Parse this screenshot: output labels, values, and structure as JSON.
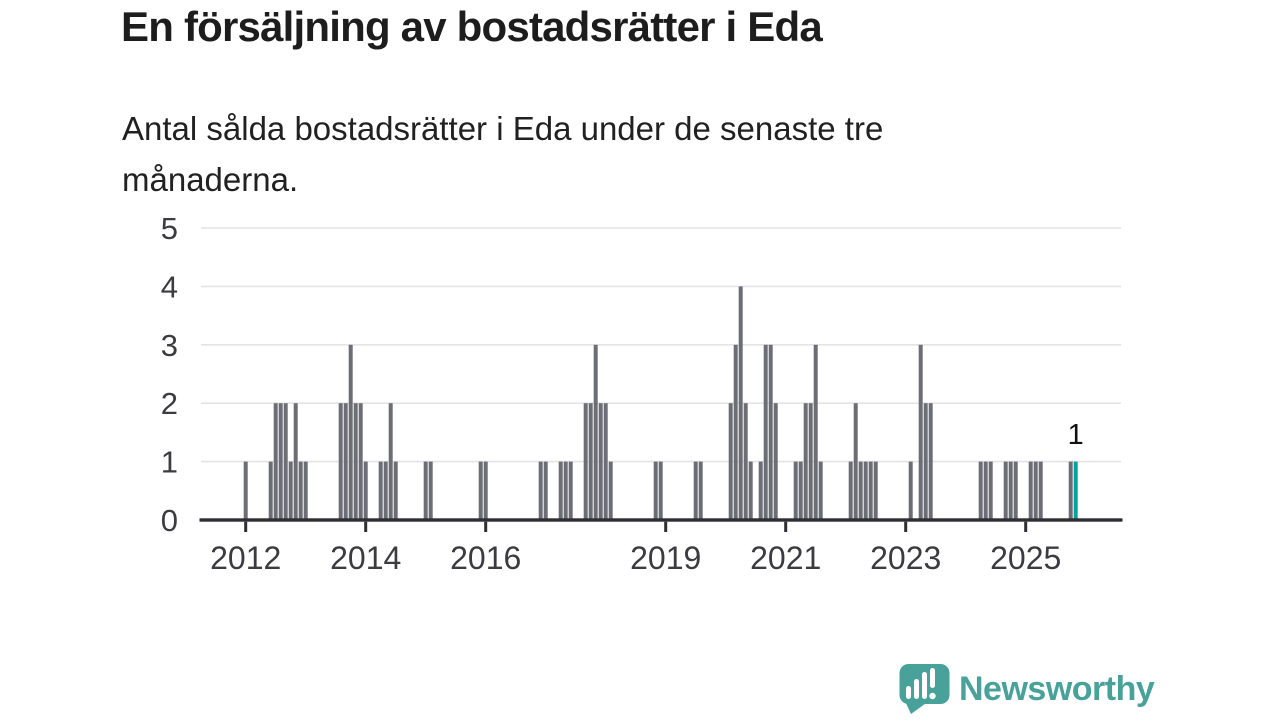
{
  "header": {
    "title": "En försäljning av bostadsrätter i Eda",
    "subtitle_line1": "Antal sålda bostadsrätter i Eda under de senaste tre",
    "subtitle_line2": "månaderna."
  },
  "chart_data": {
    "type": "bar",
    "title": "En försäljning av bostadsrätter i Eda",
    "subtitle": "Antal sålda bostadsrätter i Eda under de senaste tre månaderna.",
    "ylabel": "",
    "xlabel": "",
    "ylim": [
      0,
      5
    ],
    "grid": true,
    "legend_position": "none",
    "y_ticks": [
      0,
      1,
      2,
      3,
      4,
      5
    ],
    "x_ticks": [
      {
        "label": "2012",
        "month_index": 0
      },
      {
        "label": "2014",
        "month_index": 24
      },
      {
        "label": "2016",
        "month_index": 48
      },
      {
        "label": "2019",
        "month_index": 84
      },
      {
        "label": "2021",
        "month_index": 108
      },
      {
        "label": "2023",
        "month_index": 132
      },
      {
        "label": "2025",
        "month_index": 156
      }
    ],
    "highlight_label": "1",
    "colors": {
      "bar": "#6d6d75",
      "highlight": "#00a49c",
      "grid": "#e4e4e6",
      "axis": "#2e2e33",
      "axis_text": "#3c3c40",
      "annotation_text": "#111111"
    },
    "points": [
      [
        "2012-01",
        1
      ],
      [
        "2012-06",
        1
      ],
      [
        "2012-07",
        2
      ],
      [
        "2012-08",
        2
      ],
      [
        "2012-09",
        2
      ],
      [
        "2012-10",
        1
      ],
      [
        "2012-11",
        2
      ],
      [
        "2012-12",
        1
      ],
      [
        "2013-01",
        1
      ],
      [
        "2013-08",
        2
      ],
      [
        "2013-09",
        2
      ],
      [
        "2013-10",
        3
      ],
      [
        "2013-11",
        2
      ],
      [
        "2013-12",
        2
      ],
      [
        "2014-01",
        1
      ],
      [
        "2014-04",
        1
      ],
      [
        "2014-05",
        1
      ],
      [
        "2014-06",
        2
      ],
      [
        "2014-07",
        1
      ],
      [
        "2015-01",
        1
      ],
      [
        "2015-02",
        1
      ],
      [
        "2015-12",
        1
      ],
      [
        "2016-01",
        1
      ],
      [
        "2016-12",
        1
      ],
      [
        "2017-01",
        1
      ],
      [
        "2017-04",
        1
      ],
      [
        "2017-05",
        1
      ],
      [
        "2017-06",
        1
      ],
      [
        "2017-09",
        2
      ],
      [
        "2017-10",
        2
      ],
      [
        "2017-11",
        3
      ],
      [
        "2017-12",
        2
      ],
      [
        "2018-01",
        2
      ],
      [
        "2018-02",
        1
      ],
      [
        "2018-11",
        1
      ],
      [
        "2018-12",
        1
      ],
      [
        "2019-07",
        1
      ],
      [
        "2019-08",
        1
      ],
      [
        "2020-02",
        2
      ],
      [
        "2020-03",
        3
      ],
      [
        "2020-04",
        4
      ],
      [
        "2020-05",
        2
      ],
      [
        "2020-06",
        1
      ],
      [
        "2020-08",
        1
      ],
      [
        "2020-09",
        3
      ],
      [
        "2020-10",
        3
      ],
      [
        "2020-11",
        2
      ],
      [
        "2021-03",
        1
      ],
      [
        "2021-04",
        1
      ],
      [
        "2021-05",
        2
      ],
      [
        "2021-06",
        2
      ],
      [
        "2021-07",
        3
      ],
      [
        "2021-08",
        1
      ],
      [
        "2022-02",
        1
      ],
      [
        "2022-03",
        2
      ],
      [
        "2022-04",
        1
      ],
      [
        "2022-05",
        1
      ],
      [
        "2022-06",
        1
      ],
      [
        "2022-07",
        1
      ],
      [
        "2023-02",
        1
      ],
      [
        "2023-04",
        3
      ],
      [
        "2023-05",
        2
      ],
      [
        "2023-06",
        2
      ],
      [
        "2024-04",
        1
      ],
      [
        "2024-05",
        1
      ],
      [
        "2024-06",
        1
      ],
      [
        "2024-09",
        1
      ],
      [
        "2024-10",
        1
      ],
      [
        "2024-11",
        1
      ],
      [
        "2025-02",
        1
      ],
      [
        "2025-03",
        1
      ],
      [
        "2025-04",
        1
      ],
      [
        "2025-10",
        1
      ],
      [
        "2025-11",
        1,
        "highlight"
      ]
    ]
  },
  "branding": {
    "logo_text": "Newsworthy",
    "logo_color": "#48a29a"
  }
}
